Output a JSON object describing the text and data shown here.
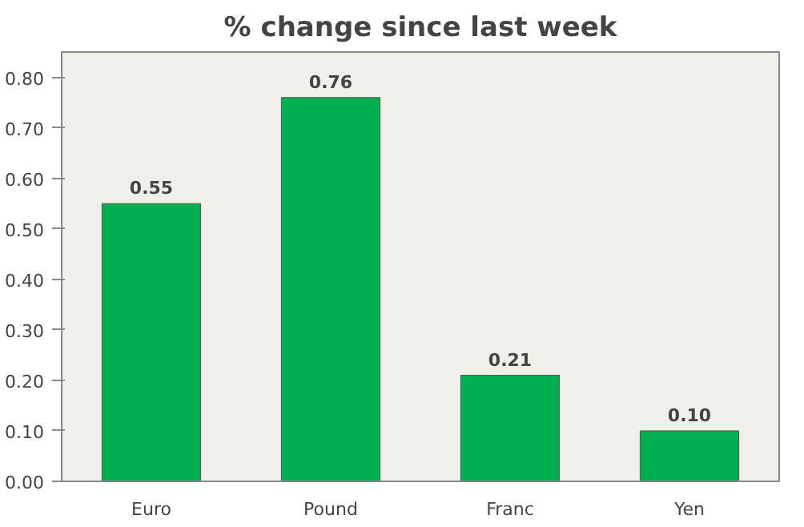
{
  "chart_data": {
    "type": "bar",
    "title": "% change since last week",
    "categories": [
      "Euro",
      "Pound",
      "Franc",
      "Yen"
    ],
    "values": [
      0.55,
      0.76,
      0.21,
      0.1
    ],
    "value_labels": [
      "0.55",
      "0.76",
      "0.21",
      "0.10"
    ],
    "color": "#00b050",
    "ylim": [
      0,
      0.85
    ],
    "yticks": [
      {
        "value": 0,
        "label": "0.00"
      },
      {
        "value": 0.1,
        "label": "0.10"
      },
      {
        "value": 0.2,
        "label": "0.20"
      },
      {
        "value": 0.3,
        "label": "0.30"
      },
      {
        "value": 0.4,
        "label": "0.40"
      },
      {
        "value": 0.5,
        "label": "0.50"
      },
      {
        "value": 0.6,
        "label": "0.60"
      },
      {
        "value": 0.7,
        "label": "0.70"
      },
      {
        "value": 0.8,
        "label": "0.80"
      }
    ],
    "grid": false
  }
}
